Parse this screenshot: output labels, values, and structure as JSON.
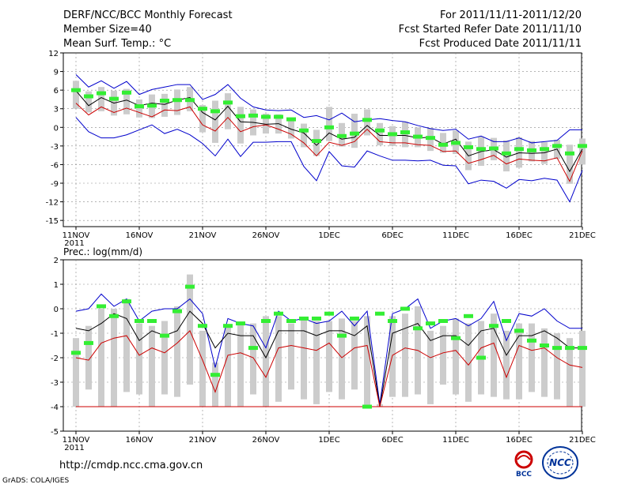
{
  "header": {
    "title": "DERF/NCC/BCC Monthly Forecast",
    "member_size": "Member Size=40",
    "variable": "Mean Surf. Temp.: °C",
    "period": "For 2011/11/11-2011/12/20",
    "start_date": "Fcst Started Refer Date 2011/11/10",
    "produced_date": "Fcst Produced Date 2011/11/11"
  },
  "footer": {
    "url": "http://cmdp.ncc.cma.gov.cn",
    "grads": "GrADS: COLA/IGES",
    "logo_left_text": "BCC",
    "logo_right_text": "NCC"
  },
  "colors": {
    "max": "#0000cc",
    "min": "#cc0000",
    "mean": "#000000",
    "obs": "#33ee33",
    "box": "#cccccc"
  },
  "chart_data": [
    {
      "type": "line",
      "title": "Mean Surf. Temp.: °C",
      "ylim": [
        -16,
        12
      ],
      "yticks": [
        12,
        9,
        6,
        3,
        0,
        -3,
        -6,
        -9,
        -12,
        -15
      ],
      "xticks": [
        {
          "day": 0,
          "label": "11NOV",
          "sub": "2011"
        },
        {
          "day": 5,
          "label": "16NOV"
        },
        {
          "day": 10,
          "label": "21NOV"
        },
        {
          "day": 15,
          "label": "26NOV"
        },
        {
          "day": 20,
          "label": "1DEC"
        },
        {
          "day": 25,
          "label": "6DEC"
        },
        {
          "day": 30,
          "label": "11DEC"
        },
        {
          "day": 35,
          "label": "16DEC"
        },
        {
          "day": 40,
          "label": "21DEC"
        }
      ],
      "series": [
        {
          "name": "max",
          "values": [
            8.5,
            6.5,
            7.5,
            6.3,
            7.4,
            5.3,
            6.1,
            6.5,
            6.9,
            6.9,
            4.5,
            5.3,
            6.9,
            4.7,
            3.3,
            2.8,
            2.7,
            2.8,
            1.6,
            1.9,
            1.2,
            2.3,
            0.9,
            1.2,
            1.4,
            1.1,
            0.9,
            0.3,
            -0.2,
            -0.5,
            -0.3,
            -1.9,
            -1.4,
            -2.3,
            -2.3,
            -1.7,
            -2.5,
            -2.3,
            -2.1,
            -0.4,
            -0.4
          ]
        },
        {
          "name": "mean",
          "values": [
            5.9,
            3.5,
            4.8,
            3.9,
            4.4,
            3.5,
            3.9,
            3.7,
            4.4,
            4.8,
            2.4,
            1.2,
            3.4,
            0.9,
            0.8,
            0.5,
            0.6,
            -0.3,
            -0.9,
            -2.9,
            -0.9,
            -1.9,
            -1.6,
            0.3,
            -1.3,
            -1.3,
            -1.3,
            -1.7,
            -1.6,
            -2.7,
            -1.9,
            -4.6,
            -3.9,
            -3.6,
            -4.8,
            -4.1,
            -4.2,
            -4.1,
            -3.5,
            -7.1,
            -3.5
          ]
        },
        {
          "name": "min",
          "values": [
            3.9,
            2.0,
            3.3,
            2.4,
            3.1,
            2.4,
            1.7,
            2.8,
            2.7,
            3.3,
            0.4,
            -0.6,
            1.6,
            -0.7,
            0.1,
            0.4,
            -0.3,
            -1.1,
            -2.5,
            -4.6,
            -2.4,
            -2.9,
            -2.3,
            -0.3,
            -2.3,
            -2.5,
            -2.5,
            -2.8,
            -2.9,
            -3.9,
            -3.8,
            -5.8,
            -5.2,
            -4.5,
            -5.9,
            -5.1,
            -5.3,
            -5.4,
            -4.9,
            -8.7,
            -3.8
          ]
        },
        {
          "name": "lower",
          "values": [
            1.6,
            -0.7,
            -1.7,
            -1.7,
            -1.2,
            -0.4,
            0.4,
            -1.0,
            -0.3,
            -1.2,
            -2.6,
            -4.6,
            -1.9,
            -4.7,
            -2.4,
            -2.4,
            -2.3,
            -2.3,
            -6.3,
            -8.6,
            -3.9,
            -6.2,
            -6.4,
            -3.8,
            -4.6,
            -5.3,
            -5.3,
            -5.4,
            -5.3,
            -6.1,
            -6.2,
            -9.1,
            -8.5,
            -8.7,
            -9.8,
            -8.4,
            -8.6,
            -8.2,
            -8.5,
            -12.0,
            -6.9
          ]
        },
        {
          "name": "obs",
          "values": [
            6.0,
            5.0,
            5.5,
            4.6,
            5.6,
            3.4,
            3.5,
            4.3,
            4.4,
            4.4,
            3.0,
            2.6,
            4.0,
            1.8,
            1.9,
            1.7,
            1.7,
            1.3,
            -0.5,
            -2.2,
            0.0,
            -1.4,
            -1.0,
            1.2,
            -0.5,
            -1.1,
            -0.8,
            -1.5,
            -1.7,
            -2.8,
            -2.5,
            -3.2,
            -3.5,
            -3.4,
            -4.2,
            -3.5,
            -3.7,
            -3.5,
            -3.0,
            -4.2,
            -3.0
          ]
        }
      ],
      "box_low": [
        3.0,
        2.4,
        2.6,
        1.9,
        2.1,
        1.6,
        1.5,
        1.7,
        2.0,
        2.6,
        -0.8,
        -2.5,
        -0.3,
        -2.6,
        -1.3,
        -1.0,
        -1.0,
        -1.8,
        -3.2,
        -4.6,
        -2.2,
        -3.1,
        -3.3,
        -1.3,
        -2.9,
        -3.0,
        -3.2,
        -3.2,
        -3.8,
        -4.1,
        -4.3,
        -6.9,
        -6.2,
        -5.3,
        -7.1,
        -6.5,
        -5.5,
        -5.9,
        -5.1,
        -9.1,
        -6.0
      ],
      "box_high": [
        7.5,
        5.8,
        6.5,
        5.9,
        6.2,
        4.5,
        5.3,
        5.4,
        6.1,
        6.5,
        3.6,
        4.3,
        5.5,
        3.3,
        2.9,
        2.2,
        2.1,
        1.5,
        0.6,
        -0.4,
        3.3,
        0.7,
        2.2,
        2.9,
        0.7,
        0.2,
        0.9,
        0.0,
        -0.1,
        -0.9,
        -0.5,
        -2.3,
        -1.5,
        -1.7,
        -2.1,
        -1.6,
        -2.2,
        -2.4,
        -2.0,
        -2.8,
        -1.8
      ]
    },
    {
      "type": "line",
      "title": "Prec.: log(mm/d)",
      "ylim": [
        -5,
        2
      ],
      "yticks": [
        2,
        1,
        0,
        -1,
        -2,
        -3,
        -4,
        -5
      ],
      "xticks": [
        {
          "day": 0,
          "label": "11NOV",
          "sub": "2011"
        },
        {
          "day": 5,
          "label": "16NOV"
        },
        {
          "day": 10,
          "label": "21NOV"
        },
        {
          "day": 15,
          "label": "26NOV"
        },
        {
          "day": 20,
          "label": "1DEC"
        },
        {
          "day": 25,
          "label": "6DEC"
        },
        {
          "day": 30,
          "label": "11DEC"
        },
        {
          "day": 35,
          "label": "16DEC"
        },
        {
          "day": 40,
          "label": "21DEC"
        }
      ],
      "series": [
        {
          "name": "max",
          "values": [
            -0.1,
            0.0,
            0.6,
            0.1,
            0.4,
            -0.5,
            -0.1,
            0.0,
            0.0,
            0.4,
            -0.2,
            -2.4,
            -0.4,
            -0.6,
            -0.7,
            -1.6,
            -0.1,
            -0.5,
            -0.4,
            -0.6,
            -0.5,
            -0.1,
            -0.7,
            -0.1,
            -3.9,
            -0.2,
            0.0,
            0.4,
            -0.8,
            -0.5,
            -0.4,
            -0.7,
            -0.4,
            0.3,
            -1.3,
            -0.2,
            -0.3,
            0.0,
            -0.5,
            -0.8,
            -0.8
          ]
        },
        {
          "name": "mean",
          "values": [
            -0.8,
            -0.9,
            -0.6,
            -0.2,
            -0.4,
            -1.3,
            -0.9,
            -1.1,
            -0.9,
            -0.1,
            -0.6,
            -1.6,
            -1.0,
            -1.1,
            -1.1,
            -2.0,
            -0.9,
            -0.9,
            -0.9,
            -1.1,
            -0.9,
            -0.9,
            -1.1,
            -0.7,
            -4.0,
            -1.0,
            -0.8,
            -0.6,
            -1.3,
            -1.1,
            -1.1,
            -1.5,
            -0.9,
            -0.8,
            -1.9,
            -1.1,
            -1.1,
            -0.9,
            -1.2,
            -1.6,
            -1.6
          ]
        },
        {
          "name": "min",
          "values": [
            -2.0,
            -2.1,
            -1.4,
            -1.2,
            -1.1,
            -1.9,
            -1.6,
            -1.8,
            -1.4,
            -0.9,
            -2.1,
            -3.4,
            -1.9,
            -1.8,
            -2.0,
            -2.8,
            -1.6,
            -1.5,
            -1.6,
            -1.7,
            -1.4,
            -2.0,
            -1.6,
            -1.5,
            -4.0,
            -1.9,
            -1.6,
            -1.7,
            -2.0,
            -1.8,
            -1.7,
            -2.3,
            -1.6,
            -1.4,
            -2.8,
            -1.5,
            -1.7,
            -1.6,
            -2.0,
            -2.3,
            -2.4
          ]
        },
        {
          "name": "bottom",
          "values": [
            -4.0,
            -4.0,
            -4.0,
            -4.0,
            -4.0,
            -4.0,
            -4.0,
            -4.0,
            -4.0,
            -4.0,
            -4.0,
            -4.0,
            -4.0,
            -4.0,
            -4.0,
            -4.0,
            -4.0,
            -4.0,
            -4.0,
            -4.0,
            -4.0,
            -4.0,
            -4.0,
            -4.0,
            -4.0,
            -4.0,
            -4.0,
            -4.0,
            -4.0,
            -4.0,
            -4.0,
            -4.0,
            -4.0,
            -4.0,
            -4.0,
            -4.0,
            -4.0,
            -4.0,
            -4.0,
            -4.0,
            -4.0
          ]
        },
        {
          "name": "obs",
          "values": [
            -1.8,
            -1.4,
            0.1,
            -0.3,
            0.3,
            -0.5,
            -0.5,
            -1.1,
            -0.1,
            0.9,
            -0.7,
            -2.7,
            -0.7,
            -0.6,
            -1.6,
            -0.5,
            -0.2,
            -0.5,
            -0.4,
            -0.4,
            -0.2,
            -1.1,
            -0.4,
            -4.0,
            -0.2,
            -0.5,
            0.0,
            -0.8,
            -0.6,
            -0.5,
            -1.2,
            -0.3,
            -2.0,
            -0.7,
            -0.5,
            -0.9,
            -1.3,
            -1.5,
            -1.6,
            -1.6,
            -1.6
          ]
        }
      ],
      "box_low": [
        -4.0,
        -3.3,
        -4.0,
        -4.0,
        -3.4,
        -3.5,
        -4.0,
        -3.5,
        -3.6,
        -3.1,
        -4.0,
        -4.0,
        -4.0,
        -4.0,
        -3.5,
        -4.0,
        -3.8,
        -3.3,
        -3.7,
        -3.9,
        -3.4,
        -3.7,
        -3.3,
        -4.0,
        -4.0,
        -3.6,
        -3.6,
        -3.5,
        -3.9,
        -3.1,
        -3.5,
        -3.8,
        -3.5,
        -3.6,
        -3.7,
        -3.7,
        -3.4,
        -3.6,
        -3.7,
        -4.0,
        -4.0
      ],
      "box_high": [
        -1.2,
        -0.7,
        0.0,
        0.0,
        0.4,
        -0.6,
        -0.7,
        -0.5,
        0.1,
        1.4,
        -0.9,
        -2.2,
        -0.7,
        -0.6,
        -0.6,
        -0.3,
        -0.3,
        -0.6,
        -0.4,
        -0.5,
        -0.5,
        -0.4,
        -0.5,
        -0.3,
        -3.9,
        -0.3,
        -0.2,
        0.1,
        -0.9,
        -0.7,
        -0.4,
        -0.6,
        -0.5,
        -0.2,
        -0.9,
        -0.6,
        -0.6,
        -0.8,
        -1.0,
        -1.2,
        -0.9
      ]
    }
  ]
}
